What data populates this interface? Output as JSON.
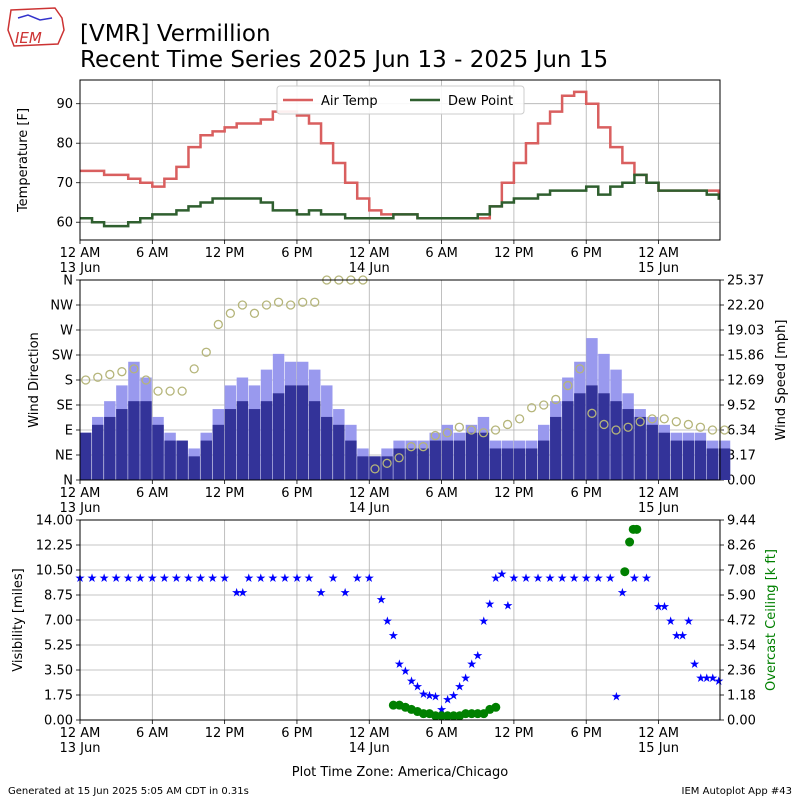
{
  "header": {
    "logo_text": "IEM",
    "title_line1": "[VMR] Vermillion",
    "title_line2": "Recent Time Series 2025 Jun 13 - 2025 Jun 15"
  },
  "footer": {
    "generated": "Generated at 15 Jun 2025 5:05 AM CDT in 0.31s",
    "app": "IEM Autoplot App #43",
    "timezone_label": "Plot Time Zone: America/Chicago"
  },
  "colors": {
    "air_temp": "#d95f5f",
    "dew_point": "#2f5f2f",
    "wind_gust_bar": "#9999ee",
    "wind_speed_bar": "#333399",
    "wind_dir_marker": "#b5b57a",
    "visibility": "#0000ff",
    "ceiling": "#008000"
  },
  "x_axis": {
    "ticks": [
      {
        "h": 0,
        "line1": "12 AM",
        "line2": "13 Jun"
      },
      {
        "h": 6,
        "line1": "6 AM",
        "line2": ""
      },
      {
        "h": 12,
        "line1": "12 PM",
        "line2": ""
      },
      {
        "h": 18,
        "line1": "6 PM",
        "line2": ""
      },
      {
        "h": 24,
        "line1": "12 AM",
        "line2": "14 Jun"
      },
      {
        "h": 30,
        "line1": "6 AM",
        "line2": ""
      },
      {
        "h": 36,
        "line1": "12 PM",
        "line2": ""
      },
      {
        "h": 42,
        "line1": "6 PM",
        "line2": ""
      },
      {
        "h": 48,
        "line1": "12 AM",
        "line2": "15 Jun"
      }
    ],
    "range_hours": [
      0,
      53.1
    ]
  },
  "chart_data": [
    {
      "type": "line",
      "ylabel": "Temperature [F]",
      "ylim": [
        55.5,
        96
      ],
      "yticks": [
        "60",
        "70",
        "80",
        "90"
      ],
      "yticks_values": [
        60,
        70,
        80,
        90
      ],
      "legend": [
        "Air Temp",
        "Dew Point"
      ],
      "legend_position": "top-center",
      "grid": true,
      "x_hours": [
        0,
        1,
        2,
        3,
        4,
        5,
        6,
        7,
        8,
        9,
        10,
        11,
        12,
        13,
        14,
        15,
        16,
        17,
        18,
        19,
        20,
        21,
        22,
        23,
        24,
        25,
        26,
        27,
        28,
        29,
        30,
        31,
        32,
        33,
        34,
        35,
        36,
        37,
        38,
        39,
        40,
        41,
        42,
        43,
        44,
        45,
        46,
        47,
        48,
        49,
        50,
        51,
        52,
        53
      ],
      "series": [
        {
          "name": "Air Temp",
          "values": [
            73,
            73,
            72,
            72,
            71,
            70,
            69,
            71,
            74,
            79,
            82,
            83,
            84,
            85,
            85,
            86,
            88,
            88,
            87,
            85,
            80,
            75,
            70,
            66,
            63,
            62,
            62,
            62,
            61,
            61,
            61,
            61,
            61,
            61,
            64,
            70,
            75,
            80,
            85,
            88,
            92,
            93,
            90,
            84,
            79,
            75,
            72,
            70,
            68,
            68,
            68,
            68,
            68,
            66
          ]
        },
        {
          "name": "Dew Point",
          "values": [
            61,
            60,
            59,
            59,
            60,
            61,
            62,
            62,
            63,
            64,
            65,
            66,
            66,
            66,
            66,
            65,
            63,
            63,
            62,
            63,
            62,
            62,
            61,
            61,
            61,
            61,
            62,
            62,
            61,
            61,
            61,
            61,
            61,
            62,
            64,
            65,
            66,
            66,
            67,
            68,
            68,
            68,
            69,
            67,
            69,
            70,
            72,
            70,
            68,
            68,
            68,
            68,
            67,
            66
          ]
        }
      ]
    },
    {
      "type": "bar",
      "ylabel": "Wind Direction",
      "y2label": "Wind Speed [mph]",
      "y_dir_ticks": [
        "N",
        "NE",
        "E",
        "SE",
        "S",
        "SW",
        "W",
        "NW",
        "N"
      ],
      "y_speed_ticks": [
        "0.00",
        "3.17",
        "6.34",
        "9.52",
        "12.69",
        "15.86",
        "19.03",
        "22.20",
        "25.37"
      ],
      "speed_range": [
        0,
        25.37
      ],
      "grid": true,
      "x_hours": [
        0,
        1,
        2,
        3,
        4,
        5,
        6,
        7,
        8,
        9,
        10,
        11,
        12,
        13,
        14,
        15,
        16,
        17,
        18,
        19,
        20,
        21,
        22,
        23,
        24,
        25,
        26,
        27,
        28,
        29,
        30,
        31,
        32,
        33,
        34,
        35,
        36,
        37,
        38,
        39,
        40,
        41,
        42,
        43,
        44,
        45,
        46,
        47,
        48,
        49,
        50,
        51,
        52,
        53
      ],
      "series": [
        {
          "name": "Wind Gust",
          "values": [
            6,
            8,
            10,
            12,
            15,
            13,
            8,
            6,
            5,
            4,
            6,
            9,
            12,
            13,
            12,
            14,
            16,
            15,
            15,
            14,
            12,
            9,
            7,
            4,
            3,
            4,
            5,
            5,
            5,
            6,
            7,
            6,
            7,
            8,
            5,
            5,
            5,
            5,
            7,
            10,
            13,
            15,
            18,
            16,
            14,
            11,
            9,
            8,
            7,
            6,
            6,
            6,
            5,
            5
          ]
        },
        {
          "name": "Wind Speed",
          "values": [
            6,
            7,
            8,
            9,
            10,
            10,
            7,
            5,
            5,
            3,
            5,
            7,
            9,
            10,
            9,
            10,
            11,
            12,
            12,
            10,
            8,
            7,
            5,
            3,
            3,
            3,
            4,
            4,
            4,
            5,
            5,
            5,
            6,
            6,
            4,
            4,
            4,
            4,
            5,
            8,
            10,
            11,
            12,
            11,
            10,
            9,
            8,
            7,
            6,
            5,
            5,
            5,
            4,
            4
          ]
        },
        {
          "name": "Wind Direction",
          "values": [
            180,
            185,
            190,
            195,
            200,
            180,
            160,
            160,
            160,
            200,
            230,
            280,
            300,
            315,
            300,
            315,
            320,
            315,
            320,
            320,
            360,
            360,
            360,
            360,
            20,
            30,
            40,
            60,
            60,
            80,
            85,
            95,
            90,
            85,
            90,
            100,
            110,
            130,
            135,
            145,
            170,
            200,
            120,
            100,
            90,
            95,
            105,
            110,
            110,
            105,
            100,
            95,
            90,
            90
          ]
        }
      ]
    },
    {
      "type": "scatter",
      "ylabel": "Visibility [miles]",
      "y2label": "Overcast Ceiling [k ft]",
      "y_vis_ticks": [
        "0.00",
        "1.75",
        "3.50",
        "5.25",
        "7.00",
        "8.75",
        "10.50",
        "12.25",
        "14.00"
      ],
      "y_ceil_ticks": [
        "0.00",
        "1.18",
        "2.36",
        "3.54",
        "4.72",
        "5.90",
        "7.08",
        "8.26",
        "9.44"
      ],
      "vis_range": [
        0,
        14
      ],
      "ceil_range": [
        0,
        9.44
      ],
      "grid": true,
      "series": [
        {
          "name": "Visibility",
          "x_hours": [
            0,
            1,
            2,
            3,
            4,
            5,
            6,
            7,
            8,
            9,
            10,
            11,
            12,
            13,
            13.5,
            14,
            15,
            16,
            17,
            18,
            19,
            20,
            21,
            22,
            23,
            24,
            25,
            25.5,
            26,
            26.5,
            27,
            27.5,
            28,
            28.5,
            29,
            29.5,
            30,
            30.5,
            31,
            31.5,
            32,
            32.5,
            33,
            33.5,
            34,
            34.5,
            35,
            35.5,
            36,
            37,
            38,
            39,
            40,
            41,
            42,
            43,
            44,
            44.5,
            45,
            46,
            47,
            48,
            48.5,
            49,
            49.5,
            50,
            50.5,
            51,
            51.5,
            52,
            52.5,
            53
          ],
          "values": [
            10,
            10,
            10,
            10,
            10,
            10,
            10,
            10,
            10,
            10,
            10,
            10,
            10,
            9,
            9,
            10,
            10,
            10,
            10,
            10,
            10,
            9,
            10,
            9,
            10,
            10,
            8.5,
            7,
            6,
            4,
            3.5,
            2.8,
            2.4,
            1.9,
            1.8,
            1.7,
            0.8,
            1.5,
            1.8,
            2.4,
            3,
            4,
            4.6,
            7,
            8.2,
            10,
            10.3,
            8.1,
            10,
            10,
            10,
            10,
            10,
            10,
            10,
            10,
            10,
            1.7,
            9,
            10,
            10,
            8,
            8,
            7,
            6,
            6,
            7,
            4,
            3,
            3,
            3,
            2.8
          ]
        },
        {
          "name": "Overcast Ceiling",
          "x_hours": [
            26.0,
            26.5,
            27.0,
            27.5,
            28.0,
            28.5,
            29.0,
            29.5,
            30.0,
            30.5,
            31.0,
            31.5,
            32.0,
            32.5,
            33.0,
            33.5,
            34.0,
            34.5,
            45.2,
            45.6,
            45.9,
            46.2
          ],
          "values": [
            0.7,
            0.7,
            0.6,
            0.5,
            0.4,
            0.3,
            0.3,
            0.2,
            0.2,
            0.2,
            0.2,
            0.2,
            0.3,
            0.3,
            0.3,
            0.3,
            0.5,
            0.6,
            7.0,
            8.4,
            9.0,
            9.0
          ]
        }
      ]
    }
  ]
}
